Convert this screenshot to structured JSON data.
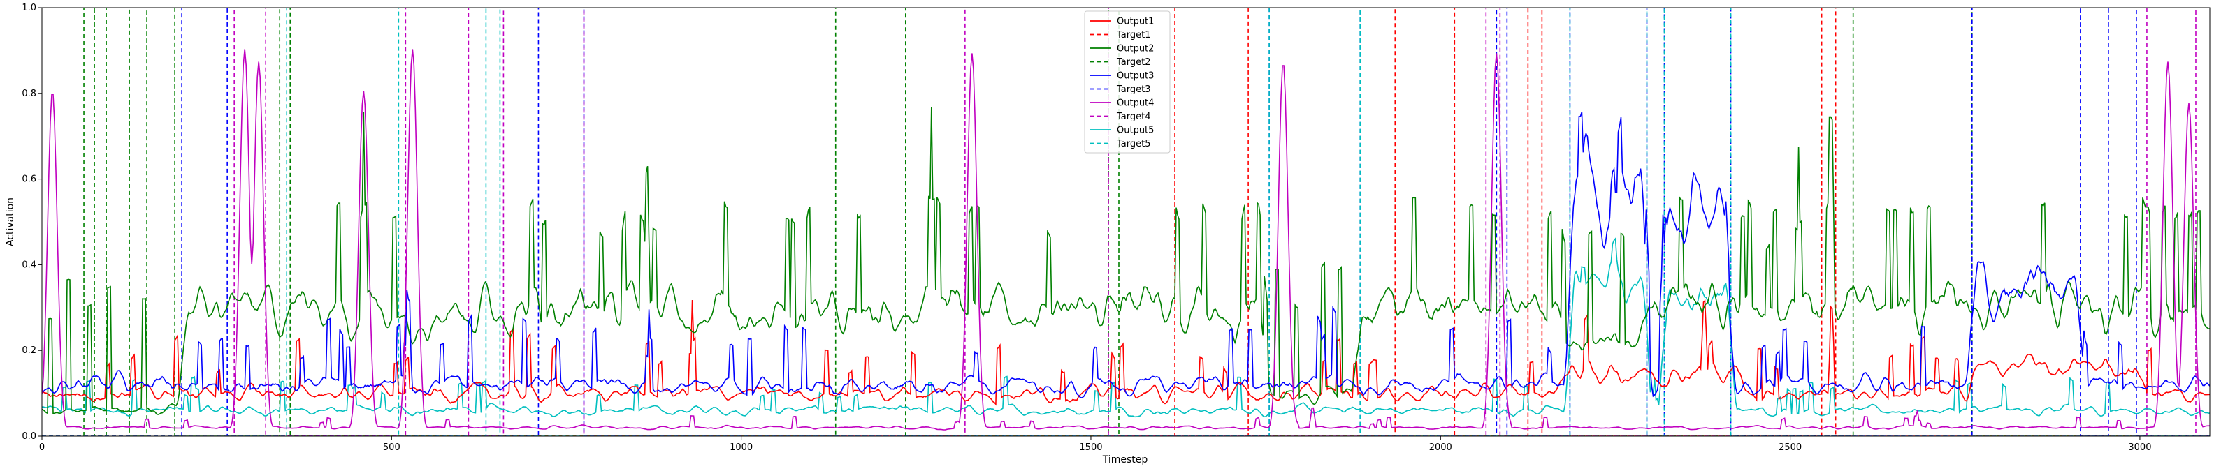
{
  "chart_data": {
    "type": "line",
    "xlabel": "Timestep",
    "ylabel": "Activation",
    "xlim": [
      0,
      3100
    ],
    "ylim": [
      0,
      1.0
    ],
    "x_ticks": [
      0,
      500,
      1000,
      1500,
      2000,
      2500,
      3000
    ],
    "y_ticks": [
      0.0,
      0.2,
      0.4,
      0.6,
      0.8,
      1.0
    ],
    "y_tick_labels": [
      "0.0",
      "0.2",
      "0.4",
      "0.6",
      "0.8",
      "1.0"
    ],
    "legend": {
      "placement": "top-center",
      "entries": [
        "Output1",
        "Target1",
        "Output2",
        "Target2",
        "Output3",
        "Target3",
        "Output4",
        "Target4",
        "Output5",
        "Target5"
      ]
    },
    "colors": {
      "1": "#ff0000",
      "2": "#008000",
      "3": "#0000ff",
      "4": "#c000c0",
      "5": "#00bfbf"
    },
    "targets": {
      "Target1": [
        [
          1620,
          1725
        ],
        [
          1935,
          2020
        ],
        [
          2125,
          2145
        ],
        [
          2545,
          2565
        ]
      ],
      "Target2": [
        [
          60,
          75
        ],
        [
          92,
          125
        ],
        [
          150,
          190
        ],
        [
          340,
          355
        ],
        [
          1135,
          1235
        ],
        [
          1525,
          1540
        ],
        [
          2590,
          2760
        ]
      ],
      "Target3": [
        [
          200,
          265
        ],
        [
          710,
          775
        ],
        [
          1755,
          1885
        ],
        [
          2080,
          2095
        ],
        [
          2185,
          2295
        ],
        [
          2320,
          2415
        ],
        [
          2760,
          2915
        ],
        [
          2955,
          2995
        ]
      ],
      "Target4": [
        [
          275,
          320
        ],
        [
          520,
          610
        ],
        [
          660,
          775
        ],
        [
          1320,
          1525
        ],
        [
          2065,
          2085
        ],
        [
          3010,
          3080
        ]
      ],
      "Target5": [
        [
          350,
          510
        ],
        [
          635,
          655
        ],
        [
          1755,
          1885
        ],
        [
          2185,
          2295
        ],
        [
          2320,
          2415
        ]
      ]
    },
    "output_levels": {
      "Output1": {
        "baseline": 0.1,
        "note_segments": [
          [
            2170,
            2430,
            0.15
          ],
          [
            2760,
            3000,
            0.16
          ]
        ]
      },
      "Output2": {
        "baseline": 0.3,
        "low_segments": [
          [
            0,
            200,
            0.06
          ],
          [
            1750,
            1880,
            0.1
          ],
          [
            2170,
            2300,
            0.22
          ]
        ]
      },
      "Output3": {
        "baseline": 0.12,
        "high_segments": [
          [
            2185,
            2295,
            0.58
          ],
          [
            2320,
            2415,
            0.55
          ],
          [
            2760,
            2915,
            0.35
          ]
        ]
      },
      "Output4": {
        "baseline": 0.02,
        "peaks": [
          [
            15,
            0.83
          ],
          [
            290,
            0.93
          ],
          [
            310,
            0.9
          ],
          [
            460,
            0.83
          ],
          [
            530,
            0.93
          ],
          [
            1330,
            0.92
          ],
          [
            1775,
            0.9
          ],
          [
            2080,
            0.92
          ],
          [
            3040,
            0.9
          ],
          [
            3070,
            0.8
          ]
        ]
      },
      "Output5": {
        "baseline": 0.06,
        "high_segments": [
          [
            2185,
            2295,
            0.36
          ],
          [
            2320,
            2415,
            0.33
          ]
        ]
      }
    }
  }
}
